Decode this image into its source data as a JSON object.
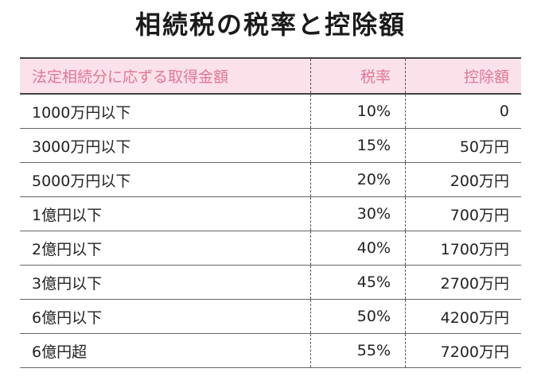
{
  "title": "相続税の税率と控除額",
  "colors": {
    "highlight": "#fbf39a",
    "header_bg": "#fbe2ea",
    "header_text": "#e27594"
  },
  "table": {
    "headers": [
      "法定相続分に応ずる取得金額",
      "税率",
      "控除額"
    ],
    "rows": [
      [
        "1000万円以下",
        "10%",
        "0"
      ],
      [
        "3000万円以下",
        "15%",
        "50万円"
      ],
      [
        "5000万円以下",
        "20%",
        "200万円"
      ],
      [
        "1億円以下",
        "30%",
        "700万円"
      ],
      [
        "2億円以下",
        "40%",
        "1700万円"
      ],
      [
        "3億円以下",
        "45%",
        "2700万円"
      ],
      [
        "6億円以下",
        "50%",
        "4200万円"
      ],
      [
        "6億円超",
        "55%",
        "7200万円"
      ]
    ]
  }
}
